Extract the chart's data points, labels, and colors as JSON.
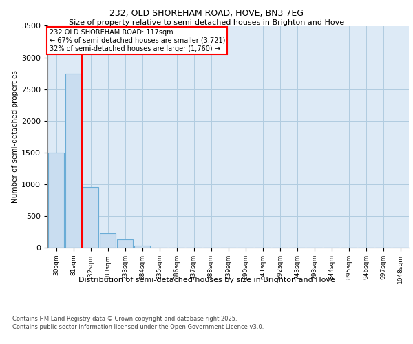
{
  "title1": "232, OLD SHOREHAM ROAD, HOVE, BN3 7EG",
  "title2": "Size of property relative to semi-detached houses in Brighton and Hove",
  "xlabel": "Distribution of semi-detached houses by size in Brighton and Hove",
  "ylabel": "Number of semi-detached properties",
  "categories": [
    "30sqm",
    "81sqm",
    "132sqm",
    "183sqm",
    "233sqm",
    "284sqm",
    "335sqm",
    "386sqm",
    "437sqm",
    "488sqm",
    "539sqm",
    "590sqm",
    "641sqm",
    "692sqm",
    "743sqm",
    "793sqm",
    "844sqm",
    "895sqm",
    "946sqm",
    "997sqm",
    "1048sqm"
  ],
  "values": [
    1500,
    2750,
    950,
    225,
    130,
    30,
    0,
    0,
    0,
    0,
    0,
    0,
    0,
    0,
    0,
    0,
    0,
    0,
    0,
    0,
    0
  ],
  "bar_color": "#c9ddf0",
  "bar_edge_color": "#6aacd6",
  "grid_color": "#b0cce0",
  "background_color": "#ddeaf6",
  "vline_color": "red",
  "vline_position": 1.5,
  "annotation_title": "232 OLD SHOREHAM ROAD: 117sqm",
  "annotation_line1": "← 67% of semi-detached houses are smaller (3,721)",
  "annotation_line2": "32% of semi-detached houses are larger (1,760) →",
  "footer1": "Contains HM Land Registry data © Crown copyright and database right 2025.",
  "footer2": "Contains public sector information licensed under the Open Government Licence v3.0.",
  "ylim": [
    0,
    3500
  ],
  "yticks": [
    0,
    500,
    1000,
    1500,
    2000,
    2500,
    3000,
    3500
  ]
}
